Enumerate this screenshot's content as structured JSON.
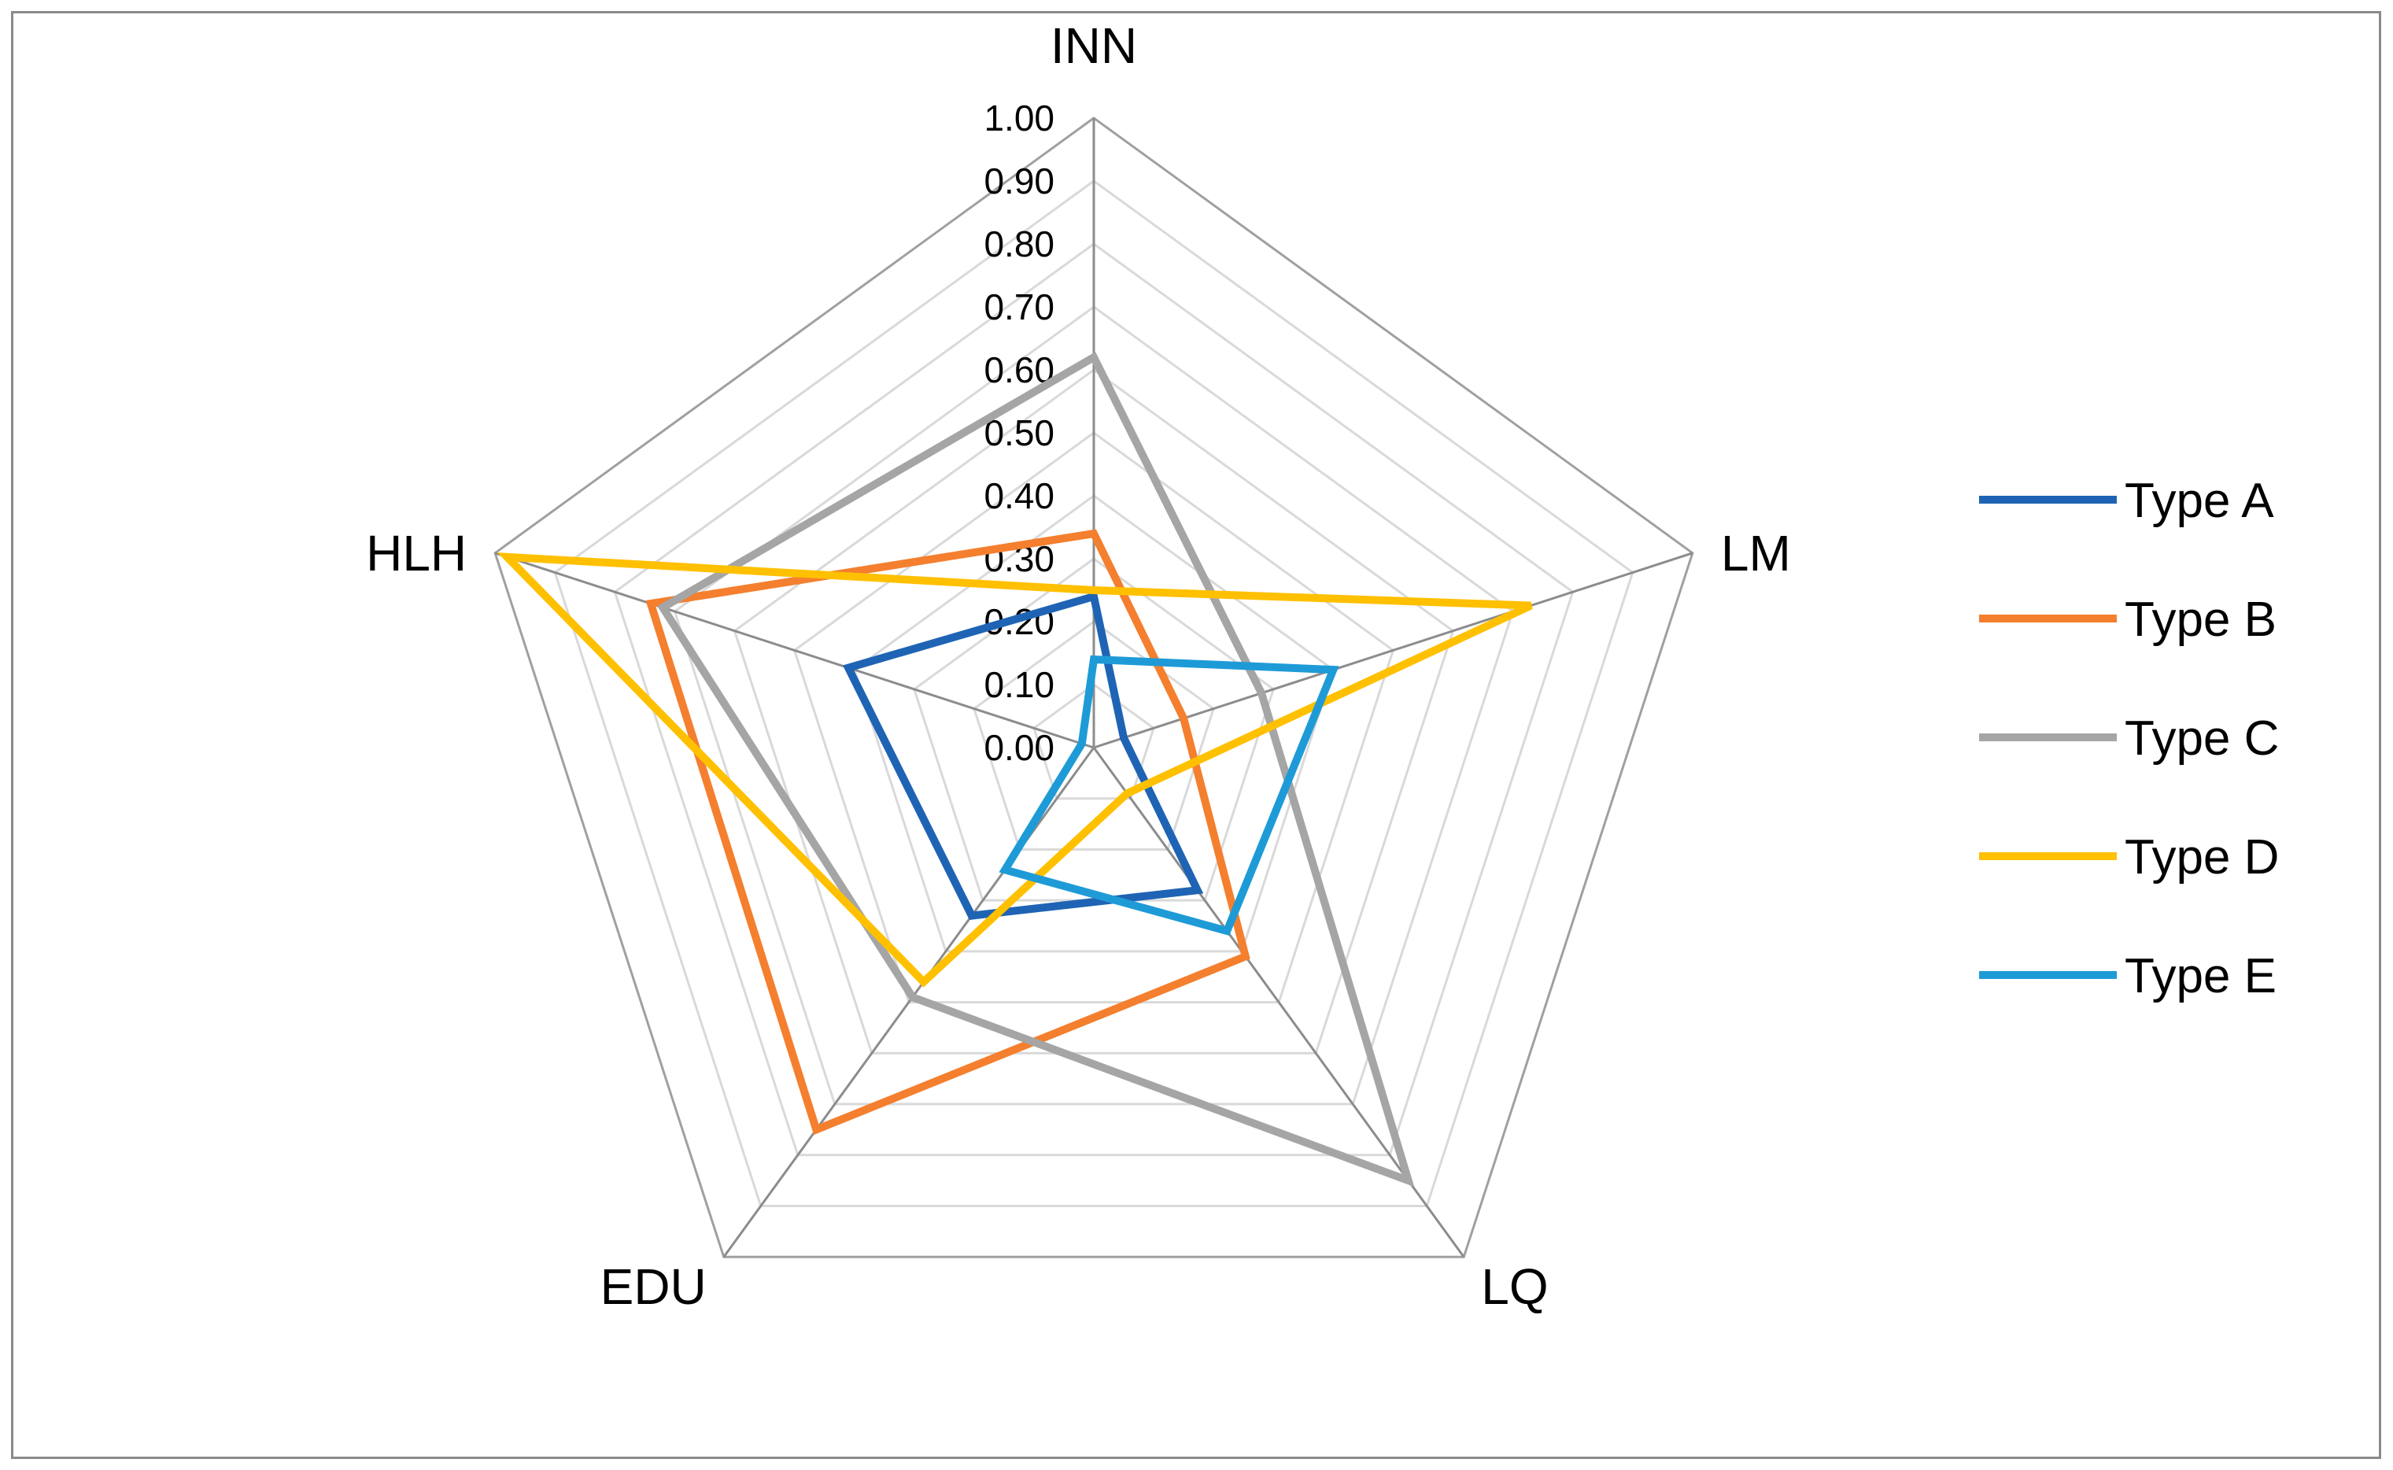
{
  "chart_data": {
    "type": "radar",
    "axes": [
      "INN",
      "LM",
      "LQ",
      "EDU",
      "HLH"
    ],
    "ticks": [
      "0.00",
      "0.10",
      "0.20",
      "0.30",
      "0.40",
      "0.50",
      "0.60",
      "0.70",
      "0.80",
      "0.90",
      "1.00"
    ],
    "range": [
      0,
      1
    ],
    "grid": true,
    "legend_position": "right",
    "series": [
      {
        "name": "Type A",
        "color": "#1F64B4",
        "values": [
          0.24,
          0.05,
          0.28,
          0.33,
          0.41
        ]
      },
      {
        "name": "Type B",
        "color": "#F47F2E",
        "values": [
          0.34,
          0.15,
          0.41,
          0.75,
          0.74
        ]
      },
      {
        "name": "Type C",
        "color": "#A5A5A5",
        "values": [
          0.62,
          0.28,
          0.85,
          0.49,
          0.72
        ]
      },
      {
        "name": "Type D",
        "color": "#FFC000",
        "values": [
          0.25,
          0.73,
          0.09,
          0.46,
          0.98
        ]
      },
      {
        "name": "Type E",
        "color": "#1E9BD7",
        "values": [
          0.14,
          0.4,
          0.36,
          0.24,
          0.02
        ]
      }
    ]
  }
}
